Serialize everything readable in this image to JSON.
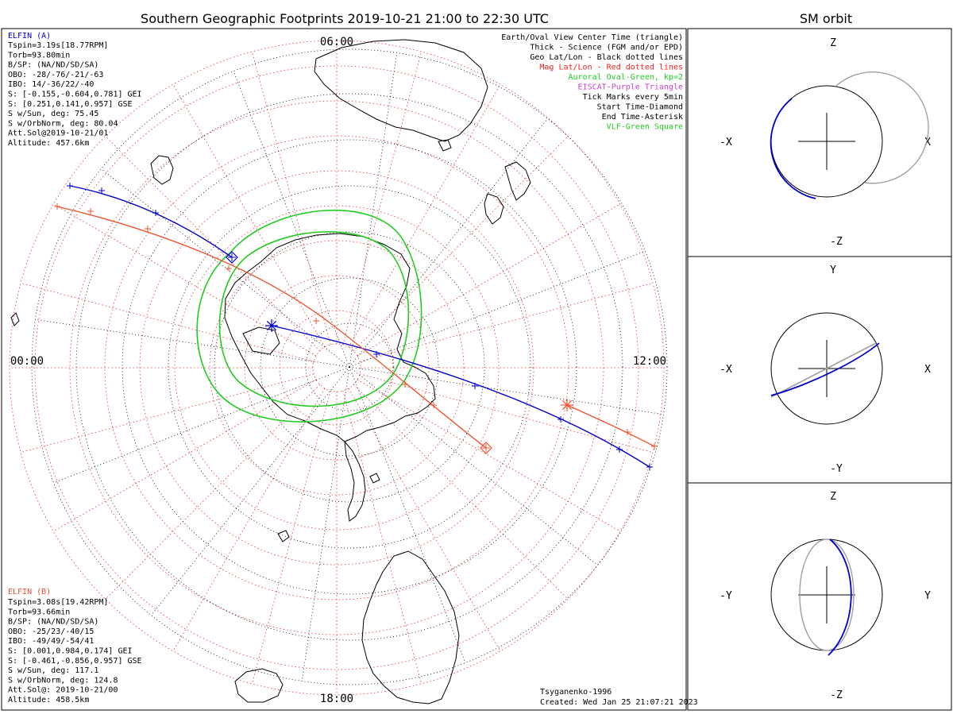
{
  "main_title": "Southern Geographic Footprints 2019-10-21 21:00 to 22:30 UTC",
  "side_title": "SM orbit",
  "colors": {
    "elfin_a": "#0000cc",
    "elfin_b": "#ee5533",
    "oval": "#22cc22",
    "mag_grid": "#ee3333",
    "geo_grid": "#000000",
    "eiscat": "#cc44cc",
    "orbit_gray": "#a0a0a0"
  },
  "elfin_a_info": {
    "name": "ELFIN (A)",
    "lines": [
      "Tspin=3.19s[18.77RPM]",
      "Torb=93.80min",
      "B/SP: (NA/ND/SD/SA)",
      "OBO: -28/-76/-21/-63",
      "IBO: 14/-36/22/-40",
      "S: [-0.155,-0.604,0.781] GEI",
      "S: [0.251,0.141,0.957] GSE",
      "S w/Sun, deg: 75.45",
      "S w/OrbNorm, deg: 80.04",
      "Att.Sol@2019-10-21/01",
      "Altitude: 457.6km"
    ]
  },
  "elfin_b_info": {
    "name": "ELFIN (B)",
    "lines": [
      "Tspin=3.08s[19.42RPM]",
      "Torb=93.66min",
      "B/SP: (NA/ND/SD/SA)",
      "OBO: -25/23/-40/15",
      "IBO: -49/49/-54/41",
      "S: [0.001,0.984,0.174] GEI",
      "S: [-0.461,-0.856,0.957] GSE",
      "S w/Sun, deg: 117.1",
      "S w/OrbNorm, deg: 124.8",
      "Att.Sol@: 2019-10-21/00",
      "Altitude: 458.5km"
    ]
  },
  "legend": [
    {
      "text": "Earth/Oval View Center Time (triangle)",
      "color": "#000000"
    },
    {
      "text": "Thick - Science (FGM and/or EPD)",
      "color": "#000000"
    },
    {
      "text": "Geo Lat/Lon - Black dotted lines",
      "color": "#000000"
    },
    {
      "text": "Mag Lat/Lon - Red dotted lines",
      "color": "#ee2222"
    },
    {
      "text": "Auroral Oval-Green, kp=2",
      "color": "#22cc22"
    },
    {
      "text": "EISCAT-Purple Triangle",
      "color": "#cc44cc"
    },
    {
      "text": "Tick Marks every 5min",
      "color": "#000000"
    },
    {
      "text": "Start Time-Diamond",
      "color": "#000000"
    },
    {
      "text": "End Time-Asterisk",
      "color": "#000000"
    },
    {
      "text": "VLF-Green Square",
      "color": "#22cc22"
    }
  ],
  "credits": {
    "author": "Tsyganenko-1996",
    "created": "Created: Wed Jan 25 21:07:21 2023"
  },
  "mlt_labels": {
    "top": "06:00",
    "left": "00:00",
    "right": "12:00",
    "bottom": "18:00"
  },
  "orbit_panels": [
    {
      "horiz_neg": "-X",
      "horiz_pos": "X",
      "vert_pos": "Z",
      "vert_neg": "-Z"
    },
    {
      "horiz_neg": "-X",
      "horiz_pos": "X",
      "vert_pos": "Y",
      "vert_neg": "-Y"
    },
    {
      "horiz_neg": "-Y",
      "horiz_pos": "Y",
      "vert_pos": "Z",
      "vert_neg": "-Z"
    }
  ],
  "chart_data": {
    "type": "scatter",
    "title": "Southern Geographic Footprints 2019-10-21 21:00 to 22:30 UTC",
    "projection": "southern polar stereographic (geographic)",
    "footprints": [
      {
        "name": "ELFIN (A)",
        "start": "diamond",
        "end": "asterisk",
        "ticks_every_min": 5
      },
      {
        "name": "ELFIN (B)",
        "start": "diamond",
        "end": "asterisk",
        "ticks_every_min": 5
      }
    ],
    "auroral_oval_kp": 2,
    "side_panels": "SM orbit projections (XZ, XY, YZ)"
  }
}
